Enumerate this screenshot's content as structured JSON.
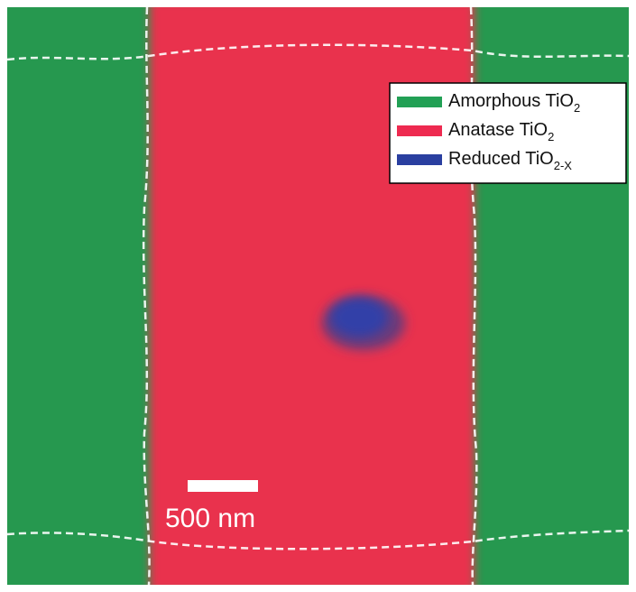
{
  "legend": {
    "entries": [
      {
        "label": "Amorphous TiO",
        "subscript": "2",
        "color": "#22a055"
      },
      {
        "label": "Anatase TiO",
        "subscript": "2",
        "color": "#ee2a50"
      },
      {
        "label": "Reduced TiO",
        "subscript": "2-X",
        "color": "#2a3fa0"
      }
    ]
  },
  "scale_bar": {
    "label": "500 nm"
  }
}
